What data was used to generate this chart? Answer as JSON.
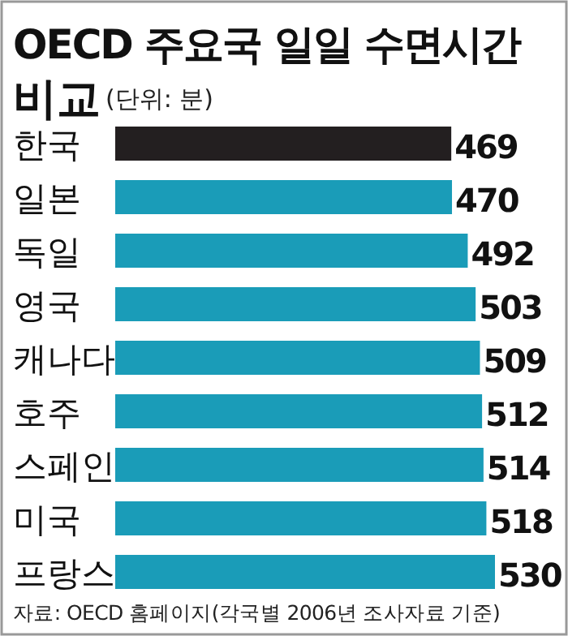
{
  "chart_data": {
    "type": "bar",
    "orientation": "horizontal",
    "title": "OECD 주요국 일일 수면시간 비교",
    "subtitle": "(단위: 분)",
    "categories": [
      "한국",
      "일본",
      "독일",
      "영국",
      "캐나다",
      "호주",
      "스페인",
      "미국",
      "프랑스"
    ],
    "values": [
      469,
      470,
      492,
      503,
      509,
      512,
      514,
      518,
      530
    ],
    "colors": [
      "#231f20",
      "#1a9cb8",
      "#1a9cb8",
      "#1a9cb8",
      "#1a9cb8",
      "#1a9cb8",
      "#1a9cb8",
      "#1a9cb8",
      "#1a9cb8"
    ],
    "xlim": [
      0,
      530
    ],
    "data_labels": true,
    "annotations": [
      "자료: OECD 홈페이지(각국별 2006년 조사자료 기준)"
    ]
  }
}
